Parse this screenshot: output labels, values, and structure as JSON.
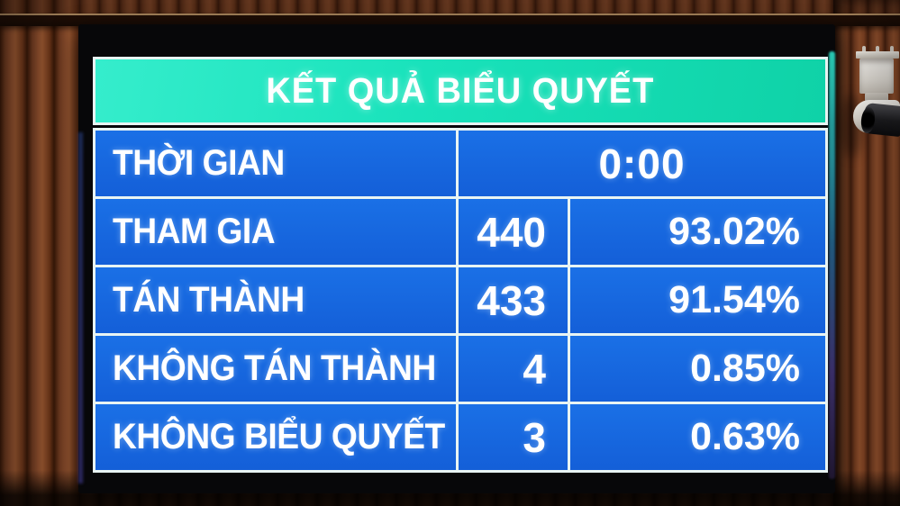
{
  "board": {
    "title": "KẾT QUẢ BIỂU QUYẾT",
    "rows": [
      {
        "label": "THỜI GIAN",
        "value": "0:00",
        "percent": ""
      },
      {
        "label": "THAM GIA",
        "value": "440",
        "percent": "93.02%"
      },
      {
        "label": "TÁN THÀNH",
        "value": "433",
        "percent": "91.54%"
      },
      {
        "label": "KHÔNG TÁN THÀNH",
        "value": "4",
        "percent": "0.85%"
      },
      {
        "label": "KHÔNG BIỂU QUYẾT",
        "value": "3",
        "percent": "0.63%"
      }
    ],
    "colors": {
      "header_green": "#19e2bb",
      "cell_blue": "#1566df",
      "grid_white": "#e8f4f3",
      "bezel_black": "#070709",
      "text_white": "#ffffff"
    }
  },
  "chart_data": {
    "type": "table",
    "title": "KẾT QUẢ BIỂU QUYẾT",
    "columns": [
      "label",
      "count",
      "percent"
    ],
    "rows": [
      [
        "THỜI GIAN",
        "0:00",
        ""
      ],
      [
        "THAM GIA",
        440,
        "93.02%"
      ],
      [
        "TÁN THÀNH",
        433,
        "91.54%"
      ],
      [
        "KHÔNG TÁN THÀNH",
        4,
        "0.85%"
      ],
      [
        "KHÔNG BIỂU QUYẾT",
        3,
        "0.63%"
      ]
    ]
  },
  "icons": {
    "camera": "ptz-security-camera"
  }
}
